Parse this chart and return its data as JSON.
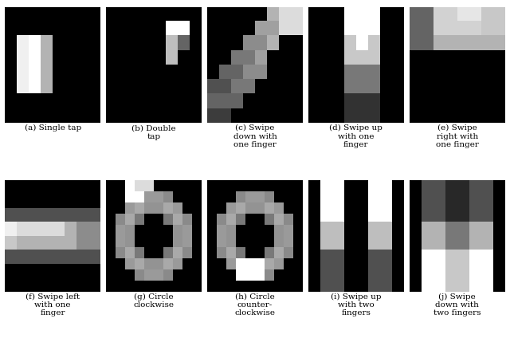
{
  "captions": [
    "(a) Single tap",
    "(b) Double\ntap",
    "(c) Swipe\ndown with\none finger",
    "(d) Swipe up\nwith one\nfinger",
    "(e) Swipe\nright with\none finger",
    "(f) Swipe left\nwith one\nfinger",
    "(g) Circle\nclockwise",
    "(h) Circle\ncounter-\nclockwise",
    "(i) Swipe up\nwith two\nfingers",
    "(j) Swipe\ndown with\ntwo fingers"
  ],
  "figsize": [
    6.4,
    4.29
  ],
  "dpi": 100,
  "bg_color": "#ffffff"
}
